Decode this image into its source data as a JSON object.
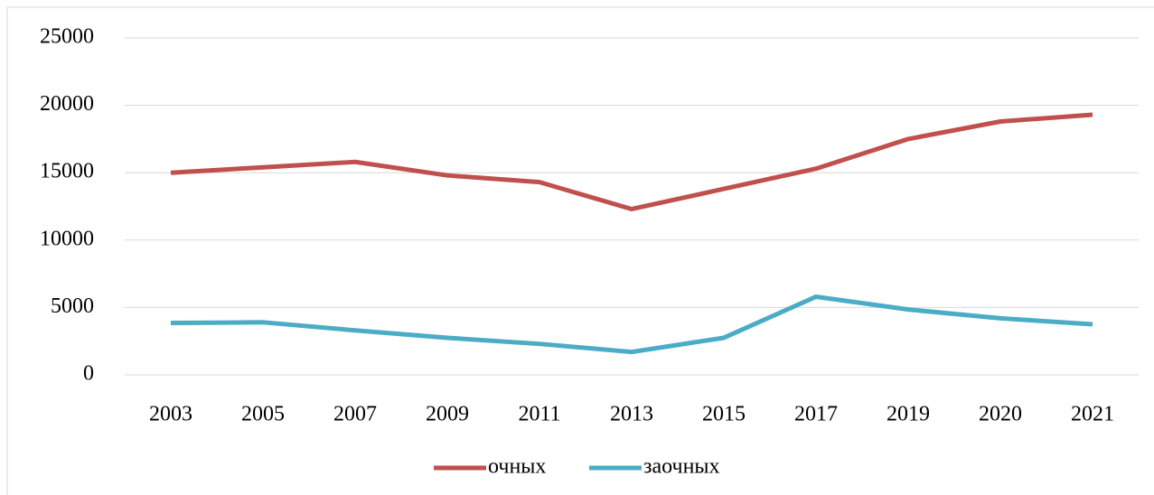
{
  "chart_data": {
    "type": "line",
    "categories": [
      "2003",
      "2005",
      "2007",
      "2009",
      "2011",
      "2013",
      "2015",
      "2017",
      "2019",
      "2020",
      "2021"
    ],
    "series": [
      {
        "name": "очных",
        "color": "#c0504d",
        "values": [
          15000,
          15400,
          15800,
          14800,
          14300,
          12300,
          13800,
          15300,
          17500,
          18800,
          19300
        ]
      },
      {
        "name": "заочных",
        "color": "#4bacc6",
        "values": [
          3850,
          3900,
          3300,
          2750,
          2300,
          1700,
          2750,
          5800,
          4850,
          4200,
          3750
        ]
      }
    ],
    "ylim": [
      0,
      25000
    ],
    "yticks": [
      0,
      5000,
      10000,
      15000,
      20000,
      25000
    ],
    "grid": true,
    "legend": "bottom"
  }
}
